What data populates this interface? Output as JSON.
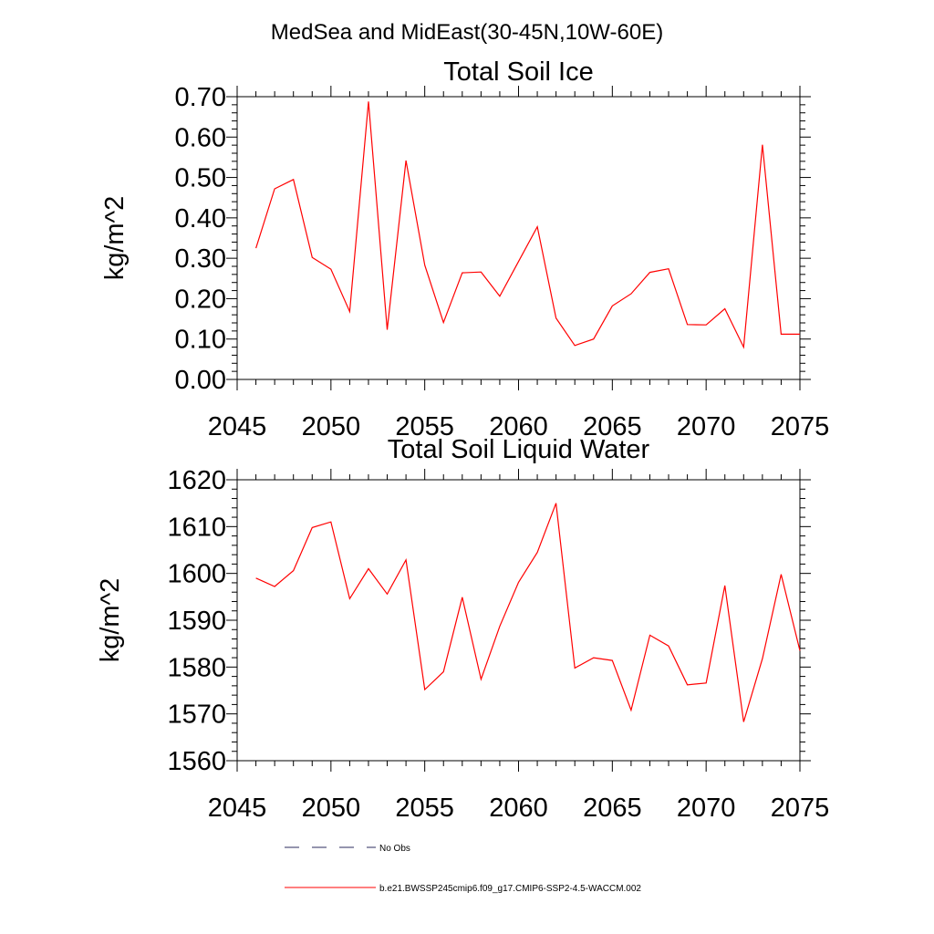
{
  "figure_title": "MedSea and MidEast(30-45N,10W-60E)",
  "legend": {
    "entries": [
      {
        "label": "No Obs",
        "style": "dashed",
        "color": "#2b2b5c"
      },
      {
        "label": "b.e21.BWSSP245cmip6.f09_g17.CMIP6-SSP2-4.5-WACCM.002",
        "style": "solid",
        "color": "#ff0000"
      }
    ]
  },
  "chart_data": [
    {
      "type": "line",
      "title": "Total Soil Ice",
      "xlabel": "",
      "ylabel": "kg/m^2",
      "xlim": [
        2045,
        2075
      ],
      "ylim": [
        0,
        0.7
      ],
      "xticks": [
        2045,
        2050,
        2055,
        2060,
        2065,
        2070,
        2075
      ],
      "yticks": [
        0.0,
        0.1,
        0.2,
        0.3,
        0.4,
        0.5,
        0.6,
        0.7
      ],
      "ytick_labels": [
        "0.00",
        "0.10",
        "0.20",
        "0.30",
        "0.40",
        "0.50",
        "0.60",
        "0.70"
      ],
      "grid": false,
      "x": [
        2046,
        2047,
        2048,
        2049,
        2050,
        2051,
        2052,
        2053,
        2054,
        2055,
        2056,
        2057,
        2058,
        2059,
        2060,
        2061,
        2062,
        2063,
        2064,
        2065,
        2066,
        2067,
        2068,
        2069,
        2070,
        2071,
        2072,
        2073,
        2074,
        2075
      ],
      "series": [
        {
          "color": "#ff0000",
          "values": [
            0.325,
            0.472,
            0.495,
            0.302,
            0.273,
            0.168,
            0.688,
            0.123,
            0.542,
            0.283,
            0.141,
            0.264,
            0.266,
            0.206,
            0.292,
            0.378,
            0.152,
            0.084,
            0.1,
            0.182,
            0.212,
            0.265,
            0.274,
            0.136,
            0.135,
            0.175,
            0.08,
            0.581,
            0.112,
            0.112
          ]
        }
      ]
    },
    {
      "type": "line",
      "title": "Total Soil Liquid Water",
      "xlabel": "",
      "ylabel": "kg/m^2",
      "xlim": [
        2045,
        2075
      ],
      "ylim": [
        1560,
        1620
      ],
      "xticks": [
        2045,
        2050,
        2055,
        2060,
        2065,
        2070,
        2075
      ],
      "yticks": [
        1560,
        1570,
        1580,
        1590,
        1600,
        1610,
        1620
      ],
      "ytick_labels": [
        "1560",
        "1570",
        "1580",
        "1590",
        "1600",
        "1610",
        "1620"
      ],
      "grid": false,
      "x": [
        2046,
        2047,
        2048,
        2049,
        2050,
        2051,
        2052,
        2053,
        2054,
        2055,
        2056,
        2057,
        2058,
        2059,
        2060,
        2061,
        2062,
        2063,
        2064,
        2065,
        2066,
        2067,
        2068,
        2069,
        2070,
        2071,
        2072,
        2073,
        2074,
        2075
      ],
      "series": [
        {
          "color": "#ff0000",
          "values": [
            1599.0,
            1597.2,
            1600.6,
            1609.8,
            1611.0,
            1594.6,
            1601.0,
            1595.6,
            1602.9,
            1575.2,
            1579.0,
            1594.9,
            1577.4,
            1588.7,
            1598.1,
            1604.5,
            1615.0,
            1579.8,
            1582.0,
            1581.4,
            1570.8,
            1586.8,
            1584.5,
            1576.2,
            1576.6,
            1597.4,
            1568.3,
            1581.8,
            1599.8,
            1583.5
          ]
        }
      ]
    }
  ]
}
